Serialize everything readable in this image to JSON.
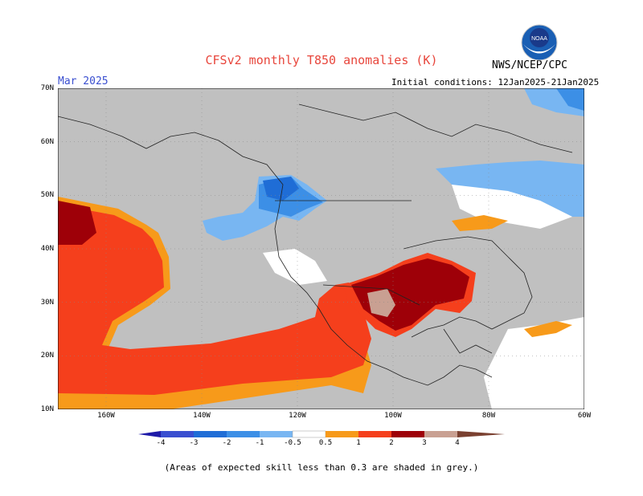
{
  "title": "CFSv2 monthly T850 anomalies (K)",
  "org": "NWS/NCEP/CPC",
  "month": "Mar 2025",
  "init": "Initial conditions: 12Jan2025-21Jan2025",
  "logo_text": "NOAA",
  "lat_labels": [
    "70N",
    "60N",
    "50N",
    "40N",
    "30N",
    "20N",
    "10N"
  ],
  "lon_labels": [
    "160W",
    "140W",
    "120W",
    "100W",
    "80W",
    "60W"
  ],
  "colorbar_labels": [
    "-4",
    "-3",
    "-2",
    "-1",
    "-0.5",
    "0.5",
    "1",
    "2",
    "3",
    "4"
  ],
  "colorbar_colors": [
    "#1e1aa8",
    "#3a4fd0",
    "#1f6dd6",
    "#3c8fe6",
    "#78b6f2",
    "#ffffff",
    "#f79a1a",
    "#f53f1c",
    "#9e0008",
    "#c9a092",
    "#7a4030"
  ],
  "footnote": "(Areas of expected skill less than 0.3 are shaded in grey.)",
  "colors": {
    "title": "#e8463c",
    "grey": "#c0c0c0",
    "month": "#3a4fd0"
  }
}
